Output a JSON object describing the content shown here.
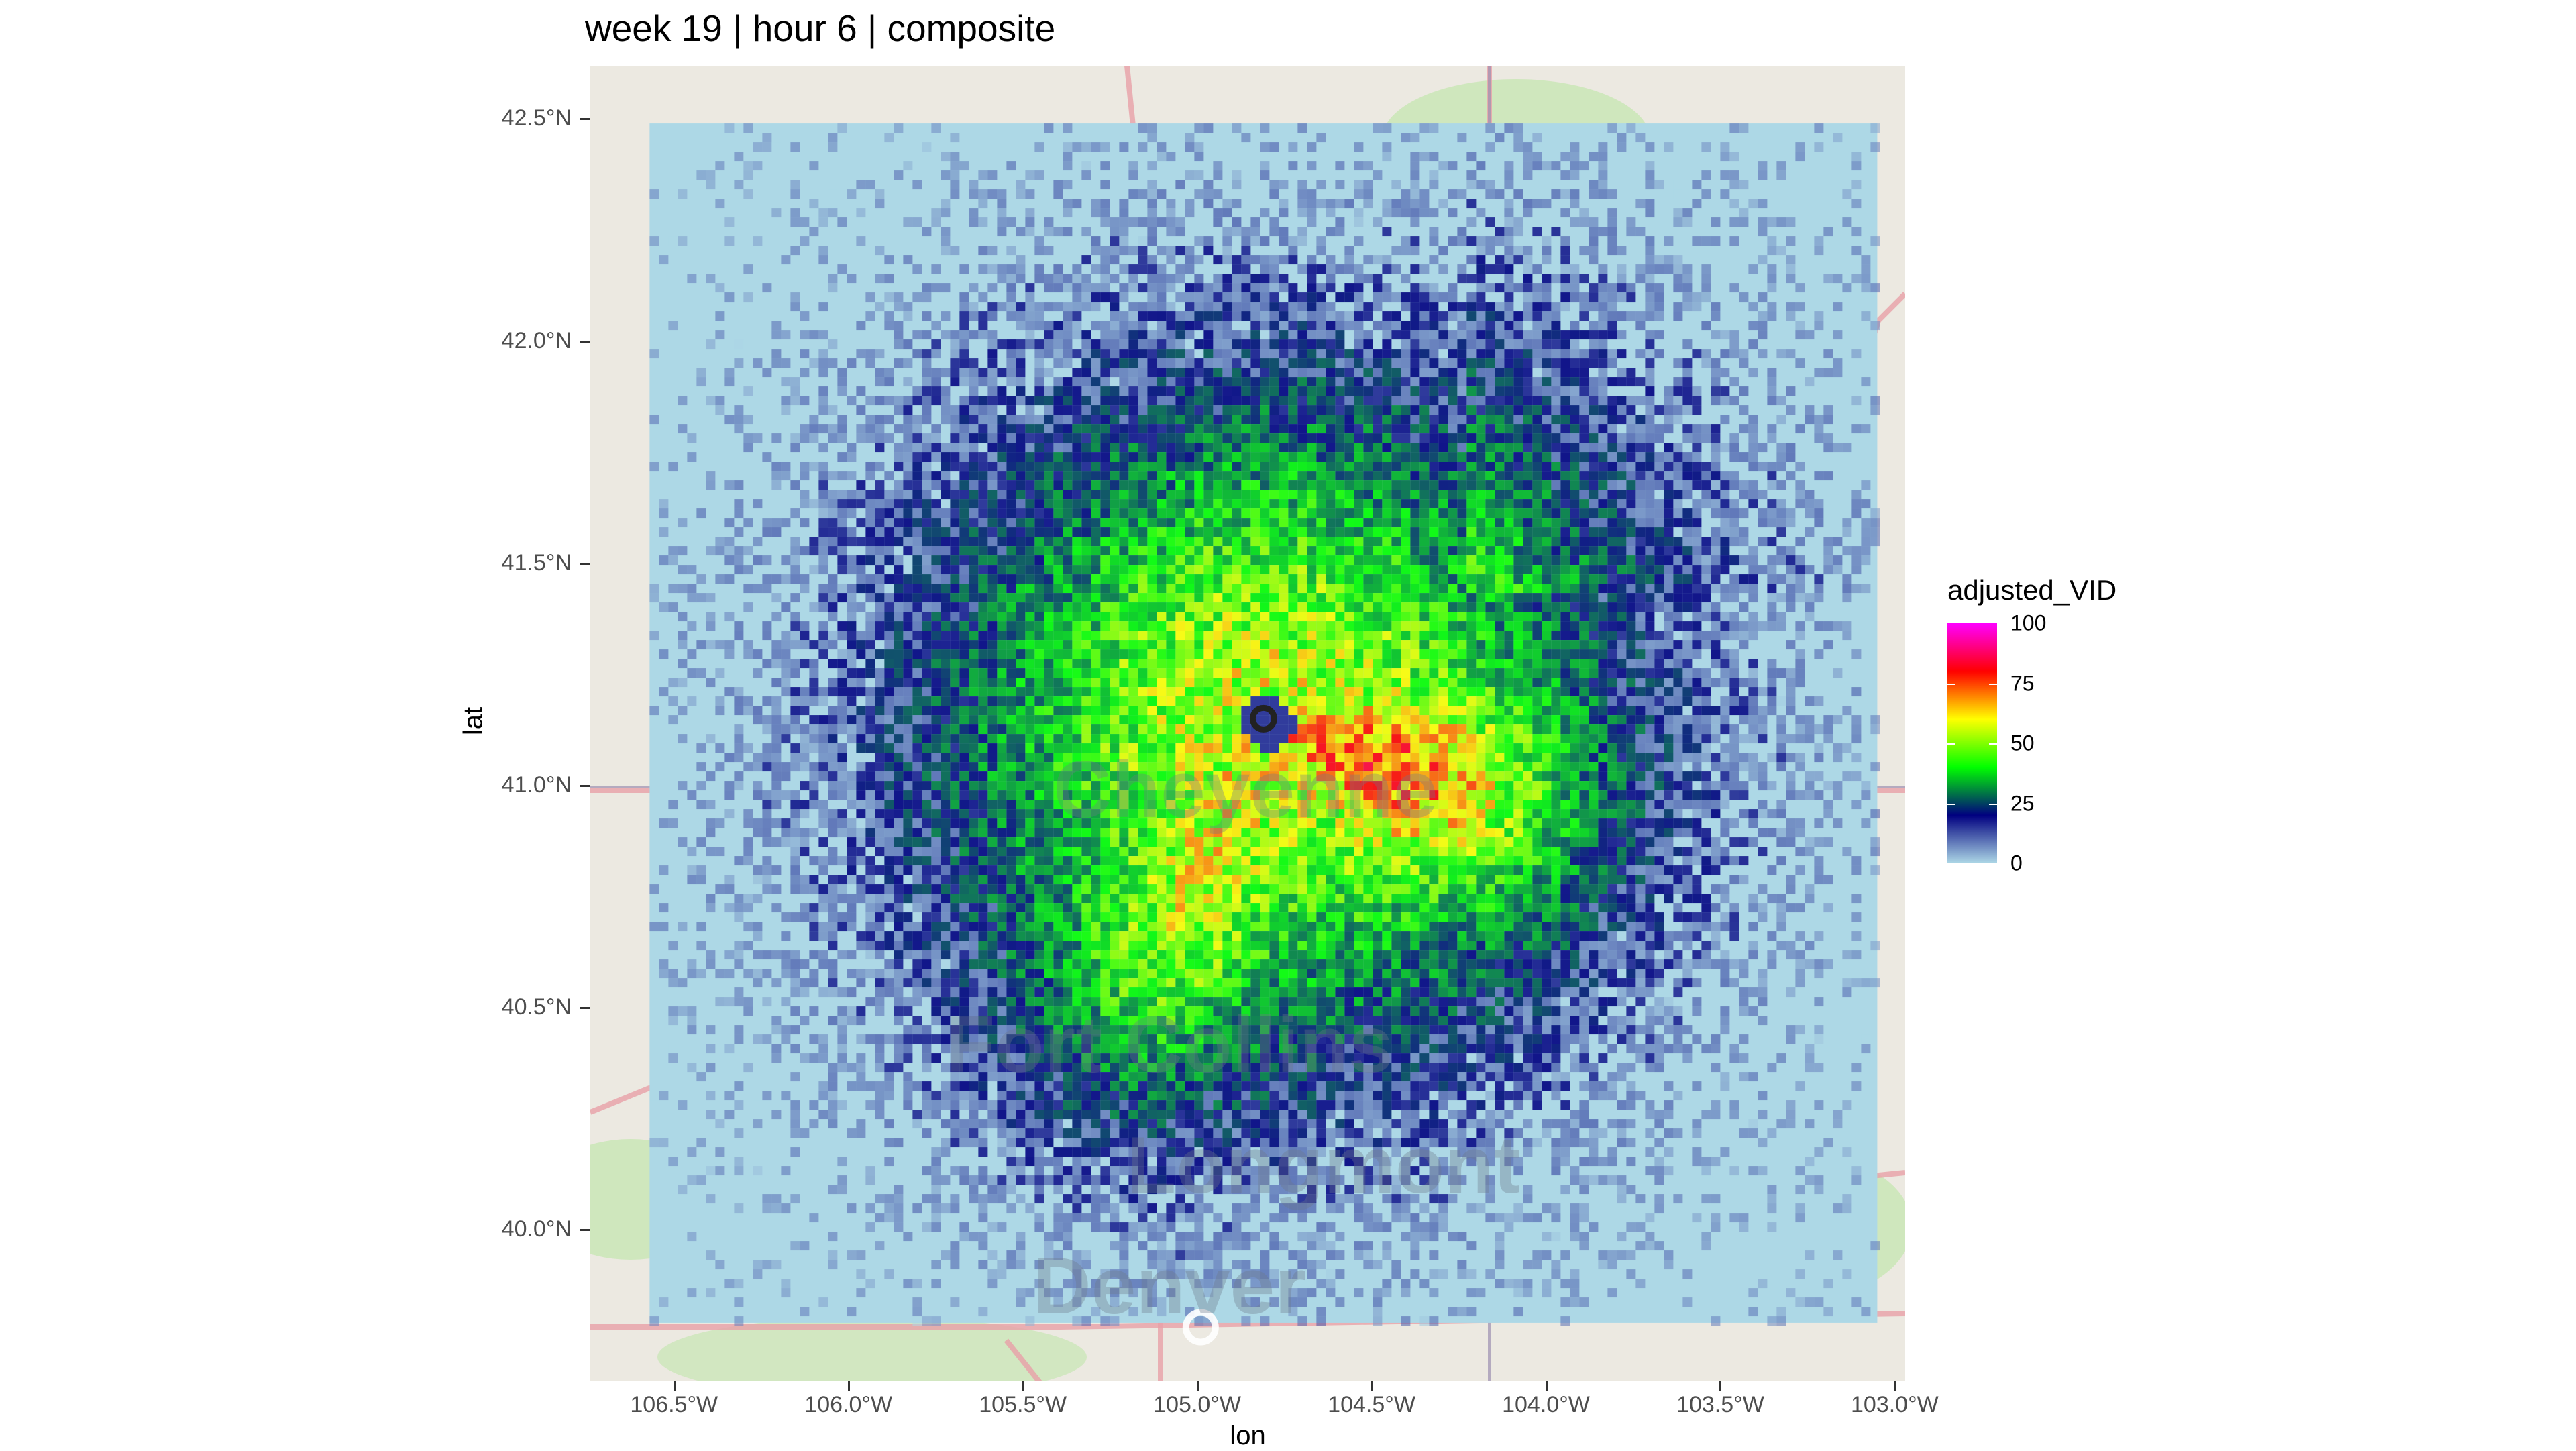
{
  "title": "week 19 | hour 6 | composite",
  "axes": {
    "xlabel": "lon",
    "ylabel": "lat",
    "x_ticks": [
      "106.5°W",
      "106.0°W",
      "105.5°W",
      "105.0°W",
      "104.5°W",
      "104.0°W",
      "103.5°W",
      "103.0°W"
    ],
    "x_tick_values": [
      -106.5,
      -106.0,
      -105.5,
      -105.0,
      -104.5,
      -104.0,
      -103.5,
      -103.0
    ],
    "y_ticks": [
      "42.5°N",
      "42.0°N",
      "41.5°N",
      "41.0°N",
      "40.5°N",
      "40.0°N"
    ],
    "y_tick_values": [
      42.5,
      42.0,
      41.5,
      41.0,
      40.5,
      40.0
    ],
    "xlim": [
      -106.74,
      -102.97
    ],
    "ylim": [
      39.66,
      42.62
    ]
  },
  "legend": {
    "title": "adjusted_VID",
    "ticks": [
      "100",
      "75",
      "50",
      "25",
      "0"
    ],
    "tick_values": [
      100,
      75,
      50,
      25,
      0
    ],
    "colors": [
      "#add8e6",
      "#000080",
      "#00ff00",
      "#ffff00",
      "#ff0000",
      "#ff00ff"
    ]
  },
  "map_labels": {
    "cheyenne": "Cheyenne",
    "fort_collins": "Fort Collins",
    "longmont": "Longmont",
    "denver": "Denver"
  },
  "radar": {
    "site_lon": -104.81,
    "site_lat": 41.15,
    "extent_lon": [
      -106.57,
      -103.05
    ],
    "extent_lat": [
      39.79,
      42.49
    ]
  },
  "colors": {
    "background": "#ece9e1",
    "base_layer": "#add8e6",
    "road": "#e8a0a8",
    "green_area": "#c8e6b4"
  }
}
